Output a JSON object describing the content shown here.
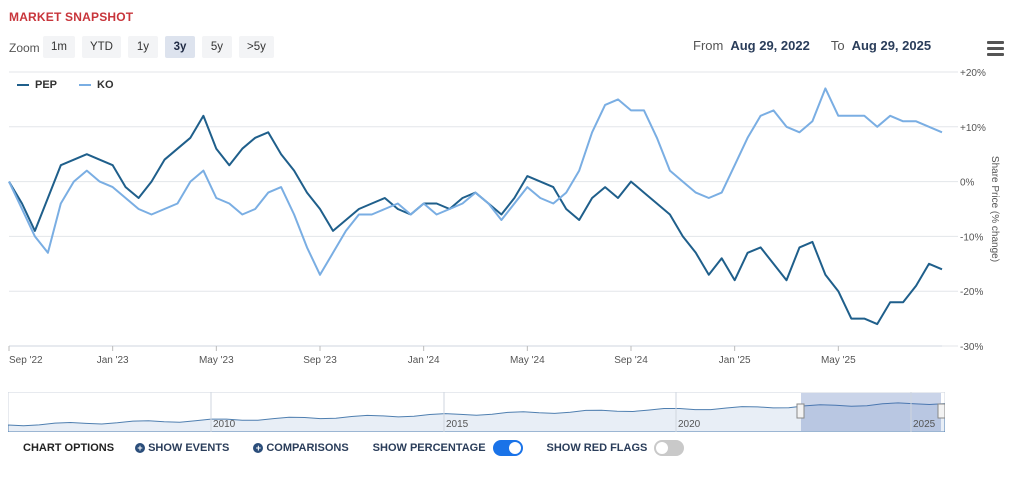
{
  "header": {
    "title": "MARKET SNAPSHOT"
  },
  "zoom": {
    "label": "Zoom",
    "buttons": [
      {
        "label": "1m",
        "active": false
      },
      {
        "label": "YTD",
        "active": false
      },
      {
        "label": "1y",
        "active": false
      },
      {
        "label": "3y",
        "active": true
      },
      {
        "label": "5y",
        "active": false
      },
      {
        "label": ">5y",
        "active": false
      }
    ]
  },
  "range": {
    "from_label": "From",
    "from_value": "Aug 29, 2022",
    "to_label": "To",
    "to_value": "Aug 29, 2025"
  },
  "menu_icon": "hamburger-menu-icon",
  "options": {
    "chart_options": "CHART OPTIONS",
    "show_events": "SHOW EVENTS",
    "comparisons": "COMPARISONS",
    "show_percentage": "SHOW PERCENTAGE",
    "show_percentage_on": true,
    "show_red_flags": "SHOW RED FLAGS",
    "show_red_flags_on": false
  },
  "chart_data": {
    "type": "line",
    "ylabel": "Share Price (% change)",
    "x_tick_labels": [
      "Sep '22",
      "Jan '23",
      "May '23",
      "Sep '23",
      "Jan '24",
      "May '24",
      "Sep '24",
      "Jan '25",
      "May '25"
    ],
    "x_ticks_months": [
      0,
      4,
      8,
      12,
      16,
      20,
      24,
      28,
      32
    ],
    "y_ticks": [
      20,
      10,
      0,
      -10,
      -20,
      -30
    ],
    "y_tick_labels": [
      "+20%",
      "+10%",
      "0%",
      "-10%",
      "-20%",
      "-30%"
    ],
    "ylim": [
      -30,
      20
    ],
    "xlim_months": [
      0,
      36
    ],
    "legend_position": "top-left",
    "grid": true,
    "colors": {
      "PEP": "#1f5f8b",
      "KO": "#7aaee3"
    },
    "x_months": [
      0,
      0.5,
      1,
      1.5,
      2,
      2.5,
      3,
      3.5,
      4,
      4.5,
      5,
      5.5,
      6,
      6.5,
      7,
      7.5,
      8,
      8.5,
      9,
      9.5,
      10,
      10.5,
      11,
      11.5,
      12,
      12.5,
      13,
      13.5,
      14,
      14.5,
      15,
      15.5,
      16,
      16.5,
      17,
      17.5,
      18,
      18.5,
      19,
      19.5,
      20,
      20.5,
      21,
      21.5,
      22,
      22.5,
      23,
      23.5,
      24,
      24.5,
      25,
      25.5,
      26,
      26.5,
      27,
      27.5,
      28,
      28.5,
      29,
      29.5,
      30,
      30.5,
      31,
      31.5,
      32,
      32.5,
      33,
      33.5,
      34,
      34.5,
      35,
      35.5,
      36
    ],
    "series": [
      {
        "name": "PEP",
        "values": [
          0,
          -4,
          -9,
          -3,
          3,
          4,
          5,
          4,
          3,
          -1,
          -3,
          0,
          4,
          6,
          8,
          12,
          6,
          3,
          6,
          8,
          9,
          5,
          2,
          -2,
          -5,
          -9,
          -7,
          -5,
          -4,
          -3,
          -5,
          -6,
          -4,
          -4,
          -5,
          -3,
          -2,
          -4,
          -6,
          -3,
          1,
          0,
          -1,
          -5,
          -7,
          -3,
          -1,
          -3,
          0,
          -2,
          -4,
          -6,
          -10,
          -13,
          -17,
          -14,
          -18,
          -13,
          -12,
          -15,
          -18,
          -12,
          -11,
          -17,
          -20,
          -25,
          -25,
          -26,
          -22,
          -22,
          -19,
          -15,
          -16
        ]
      },
      {
        "name": "KO",
        "values": [
          0,
          -5,
          -10,
          -13,
          -4,
          0,
          2,
          0,
          -1,
          -3,
          -5,
          -6,
          -5,
          -4,
          0,
          2,
          -3,
          -4,
          -6,
          -5,
          -2,
          -1,
          -6,
          -12,
          -17,
          -13,
          -9,
          -6,
          -6,
          -5,
          -4,
          -6,
          -4,
          -6,
          -5,
          -4,
          -2,
          -4,
          -7,
          -4,
          -1,
          -3,
          -4,
          -2,
          2,
          9,
          14,
          15,
          13,
          13,
          8,
          2,
          0,
          -2,
          -3,
          -2,
          3,
          8,
          12,
          13,
          10,
          9,
          11,
          17,
          12,
          12,
          12,
          10,
          12,
          11,
          11,
          10,
          9
        ]
      }
    ]
  },
  "navigator": {
    "labels": [
      "2010",
      "2015",
      "2020",
      "2025"
    ]
  }
}
